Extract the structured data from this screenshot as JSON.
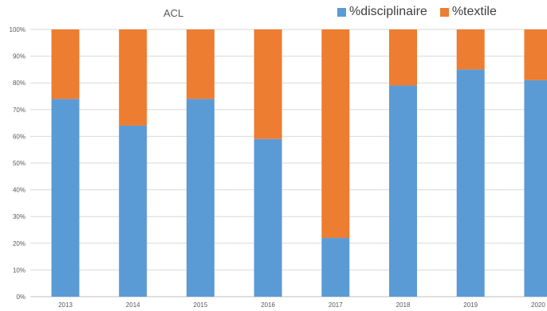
{
  "chart_data": {
    "type": "bar",
    "stacked": true,
    "title": "ACL",
    "categories": [
      "2013",
      "2014",
      "2015",
      "2016",
      "2017",
      "2018",
      "2019",
      "2020"
    ],
    "series": [
      {
        "name": "%disciplinaire",
        "color": "#5B9BD5",
        "values": [
          74,
          64,
          74,
          59,
          22,
          79,
          85,
          81
        ]
      },
      {
        "name": "%textile",
        "color": "#ED7D31",
        "values": [
          26,
          36,
          26,
          41,
          78,
          21,
          15,
          19
        ]
      }
    ],
    "yticks": [
      "0%",
      "10%",
      "20%",
      "30%",
      "40%",
      "50%",
      "60%",
      "70%",
      "80%",
      "90%",
      "100%"
    ],
    "ylim": [
      0,
      100
    ],
    "grid": true,
    "legend_position": "top-right"
  }
}
